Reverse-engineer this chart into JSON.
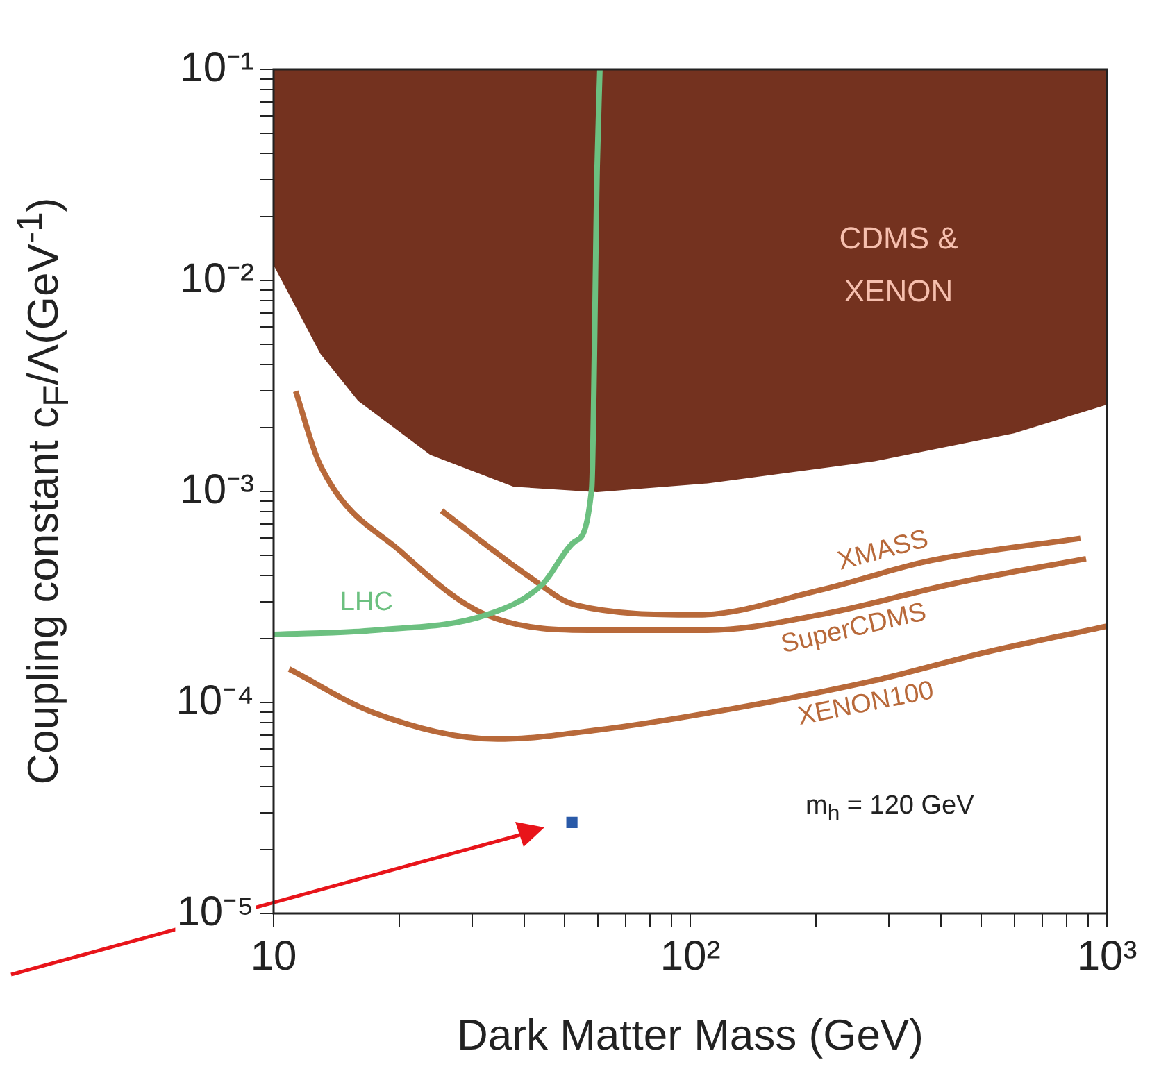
{
  "chart_data": {
    "type": "line",
    "xlabel": "Dark Matter Mass (GeV)",
    "ylabel": "Coupling constant c$_{F}$/Λ(GeV$^{-1}$)",
    "log": "xy",
    "grid": false,
    "legend": false,
    "xlim": [
      10,
      1000
    ],
    "ylim": [
      1e-05,
      0.1
    ],
    "xticks": [
      {
        "value": 10,
        "label": "10"
      },
      {
        "value": 20,
        "label": null
      },
      {
        "value": 30,
        "label": null
      },
      {
        "value": 40,
        "label": null
      },
      {
        "value": 50,
        "label": null
      },
      {
        "value": 60,
        "label": null
      },
      {
        "value": 70,
        "label": null
      },
      {
        "value": 80,
        "label": null
      },
      {
        "value": 90,
        "label": null
      },
      {
        "value": 100,
        "label": "10²"
      },
      {
        "value": 200,
        "label": null
      },
      {
        "value": 300,
        "label": null
      },
      {
        "value": 400,
        "label": null
      },
      {
        "value": 500,
        "label": null
      },
      {
        "value": 600,
        "label": null
      },
      {
        "value": 700,
        "label": null
      },
      {
        "value": 800,
        "label": null
      },
      {
        "value": 900,
        "label": null
      },
      {
        "value": 1000,
        "label": "10³"
      }
    ],
    "yticks": [
      {
        "value": 1e-05,
        "label": "10⁻⁵"
      },
      {
        "value": 2e-05,
        "label": null
      },
      {
        "value": 3e-05,
        "label": null
      },
      {
        "value": 4e-05,
        "label": null
      },
      {
        "value": 5e-05,
        "label": null
      },
      {
        "value": 6e-05,
        "label": null
      },
      {
        "value": 7e-05,
        "label": null
      },
      {
        "value": 8e-05,
        "label": null
      },
      {
        "value": 9e-05,
        "label": null
      },
      {
        "value": 0.0001,
        "label": "10⁻⁴"
      },
      {
        "value": 0.0002,
        "label": null
      },
      {
        "value": 0.0003,
        "label": null
      },
      {
        "value": 0.0004,
        "label": null
      },
      {
        "value": 0.0005,
        "label": null
      },
      {
        "value": 0.0006,
        "label": null
      },
      {
        "value": 0.0007,
        "label": null
      },
      {
        "value": 0.0008,
        "label": null
      },
      {
        "value": 0.0009,
        "label": null
      },
      {
        "value": 0.001,
        "label": "10⁻³"
      },
      {
        "value": 0.002,
        "label": null
      },
      {
        "value": 0.003,
        "label": null
      },
      {
        "value": 0.004,
        "label": null
      },
      {
        "value": 0.005,
        "label": null
      },
      {
        "value": 0.006,
        "label": null
      },
      {
        "value": 0.007,
        "label": null
      },
      {
        "value": 0.008,
        "label": null
      },
      {
        "value": 0.009,
        "label": null
      },
      {
        "value": 0.01,
        "label": "10⁻²"
      },
      {
        "value": 0.02,
        "label": null
      },
      {
        "value": 0.03,
        "label": null
      },
      {
        "value": 0.04,
        "label": null
      },
      {
        "value": 0.05,
        "label": null
      },
      {
        "value": 0.06,
        "label": null
      },
      {
        "value": 0.07,
        "label": null
      },
      {
        "value": 0.08,
        "label": null
      },
      {
        "value": 0.09,
        "label": null
      },
      {
        "value": 0.1,
        "label": "10⁻¹"
      }
    ],
    "series": [
      {
        "type": "area",
        "name": "CDMS & XENON",
        "color": "#74321f",
        "x": [
          10,
          10,
          13,
          16,
          23.8,
          37.7,
          59.8,
          110,
          277,
          598,
          1000,
          1000
        ],
        "values": [
          0.1,
          0.012,
          0.0045,
          0.0027,
          0.0015,
          0.00106,
          0.001,
          0.0011,
          0.0014,
          0.0019,
          0.0026,
          0.1
        ]
      },
      {
        "type": "line",
        "name": "LHC",
        "color": "#6cc080",
        "line_style": "solid",
        "x": [
          10,
          17.5,
          32.4,
          44,
          52.9,
          58,
          59.8,
          60.7
        ],
        "values": [
          0.00021,
          0.00022,
          0.00026,
          0.00036,
          0.00058,
          0.00103,
          0.035,
          0.1
        ]
      },
      {
        "type": "line",
        "name": "XMASS",
        "color": "#b8693a",
        "line_style": "solid",
        "x": [
          25.3,
          41.4,
          52.9,
          104,
          204,
          377,
          864
        ],
        "values": [
          0.00081,
          0.00039,
          0.00029,
          0.00026,
          0.00034,
          0.00047,
          0.0006
        ]
      },
      {
        "type": "line",
        "name": "SuperCDMS",
        "color": "#b8693a",
        "line_style": "solid",
        "x": [
          11.3,
          12.9,
          20.4,
          32.4,
          59.8,
          110,
          204,
          440,
          891
        ],
        "values": [
          0.00298,
          0.00135,
          0.00051,
          0.00026,
          0.00022,
          0.00022,
          0.00026,
          0.00037,
          0.00048
        ]
      },
      {
        "type": "line",
        "name": "XENON100",
        "color": "#b8693a",
        "line_style": "solid",
        "x": [
          10.9,
          17.5,
          34.4,
          59.8,
          110,
          277,
          513,
          1000
        ],
        "values": [
          0.000144,
          8.9e-05,
          6.7e-05,
          7.4e-05,
          8.9e-05,
          0.000127,
          0.000173,
          0.00023
        ]
      },
      {
        "type": "scatter",
        "color": "#2a5aa8",
        "marker": "square",
        "x": [
          52
        ],
        "values": [
          2.7e-05
        ]
      }
    ],
    "annotations": [
      "m$_{h}$ = 120 GeV"
    ]
  }
}
